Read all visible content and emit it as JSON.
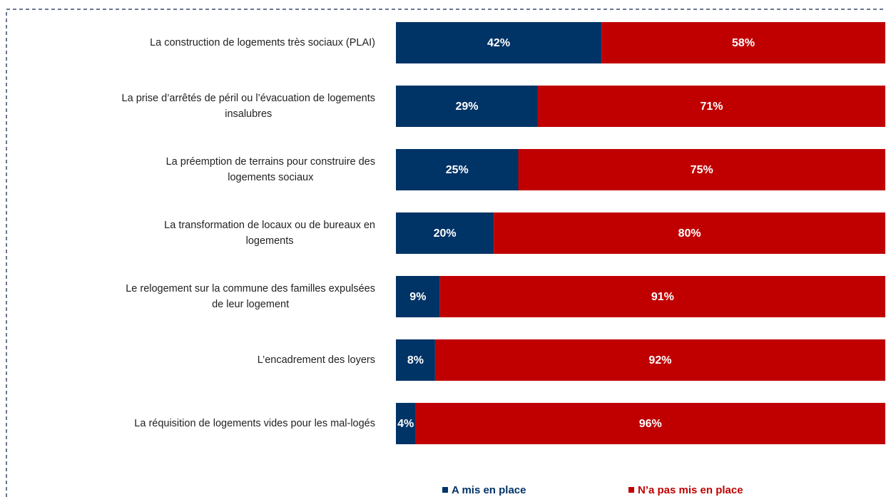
{
  "chart_data": {
    "type": "stacked-barh",
    "categories": [
      [
        "La construction de logements très sociaux (PLAI)"
      ],
      [
        "La prise d’arrêtés de péril ou l’évacuation de logements",
        "insalubres"
      ],
      [
        "La préemption de terrains pour construire des",
        "logements sociaux"
      ],
      [
        "La transformation de locaux ou de bureaux en",
        "logements"
      ],
      [
        "Le relogement sur la commune des familles expulsées",
        "de leur logement"
      ],
      [
        "L’encadrement des loyers"
      ],
      [
        "La réquisition de logements vides pour les mal-logés"
      ]
    ],
    "series": [
      {
        "name": "A mis en place",
        "color": "#003366",
        "values": [
          42,
          29,
          25,
          20,
          9,
          8,
          4
        ],
        "value_labels": [
          "42%",
          "29%",
          "25%",
          "20%",
          "9%",
          "8%",
          "4%"
        ]
      },
      {
        "name": "N’a pas mis en place",
        "color": "#c00000",
        "values": [
          58,
          71,
          75,
          80,
          91,
          92,
          96
        ],
        "value_labels": [
          "58%",
          "71%",
          "75%",
          "80%",
          "91%",
          "92%",
          "96%"
        ]
      }
    ],
    "legend": "bottom"
  }
}
